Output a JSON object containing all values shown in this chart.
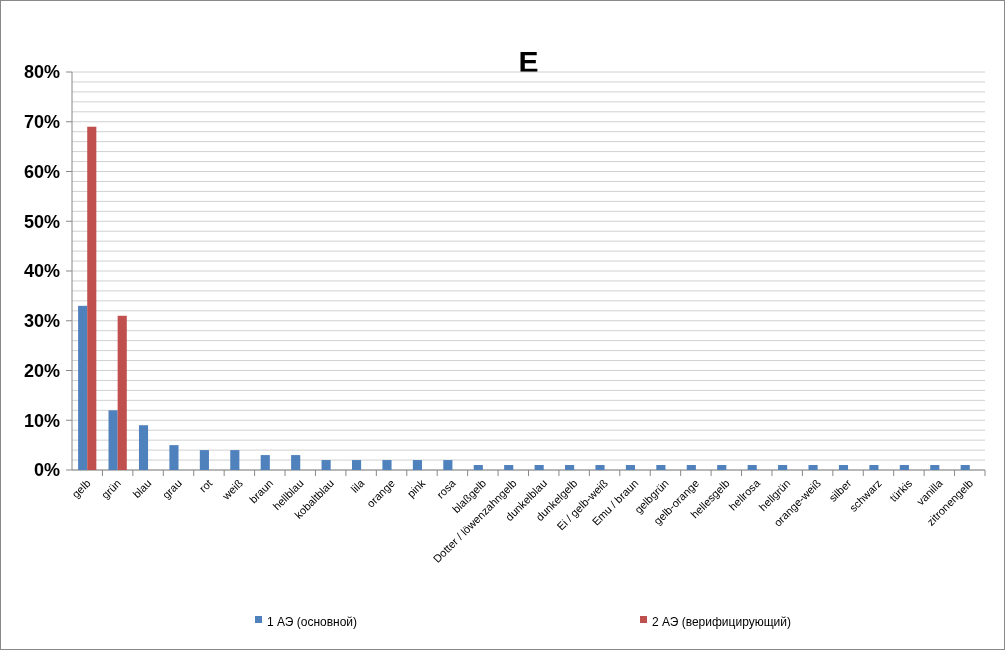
{
  "chart_data": {
    "type": "bar",
    "title": "E",
    "categories": [
      "gelb",
      "grün",
      "blau",
      "grau",
      "rot",
      "weiß",
      "braun",
      "hellblau",
      "kobaltblau",
      "lila",
      "orange",
      "pink",
      "rosa",
      "blaßgelb",
      "Dotter / löwenzahngelb",
      "dunkelblau",
      "dunkelgelb",
      "Ei / gelb-weiß",
      "Emu / braun",
      "gelbgrün",
      "gelb-orange",
      "hellesgelb",
      "hellrosa",
      "hellgrün",
      "orange-weiß",
      "silber",
      "schwarz",
      "türkis",
      "vanilla",
      "zitronengelb"
    ],
    "series": [
      {
        "name": "1 АЭ (основной)",
        "color": "#4f81bd",
        "values": [
          33,
          12,
          9,
          5,
          4,
          4,
          3,
          3,
          2,
          2,
          2,
          2,
          2,
          1,
          1,
          1,
          1,
          1,
          1,
          1,
          1,
          1,
          1,
          1,
          1,
          1,
          1,
          1,
          1,
          1
        ]
      },
      {
        "name": "2 АЭ (верифицирующий)",
        "color": "#c0504d",
        "values": [
          69,
          31,
          null,
          null,
          null,
          null,
          null,
          null,
          null,
          null,
          null,
          null,
          null,
          null,
          null,
          null,
          null,
          null,
          null,
          null,
          null,
          null,
          null,
          null,
          null,
          null,
          null,
          null,
          null,
          null
        ]
      }
    ],
    "ylim": [
      0,
      80
    ],
    "yticks": [
      {
        "value": 0,
        "label": "0%"
      },
      {
        "value": 2,
        "label": null
      },
      {
        "value": 4,
        "label": null
      },
      {
        "value": 6,
        "label": null
      },
      {
        "value": 8,
        "label": null
      },
      {
        "value": 10,
        "label": "10%"
      },
      {
        "value": 12,
        "label": null
      },
      {
        "value": 14,
        "label": null
      },
      {
        "value": 16,
        "label": null
      },
      {
        "value": 18,
        "label": null
      },
      {
        "value": 20,
        "label": "20%"
      },
      {
        "value": 22,
        "label": null
      },
      {
        "value": 24,
        "label": null
      },
      {
        "value": 26,
        "label": null
      },
      {
        "value": 28,
        "label": null
      },
      {
        "value": 30,
        "label": "30%"
      },
      {
        "value": 32,
        "label": null
      },
      {
        "value": 34,
        "label": null
      },
      {
        "value": 36,
        "label": null
      },
      {
        "value": 38,
        "label": null
      },
      {
        "value": 40,
        "label": "40%"
      },
      {
        "value": 42,
        "label": null
      },
      {
        "value": 44,
        "label": null
      },
      {
        "value": 46,
        "label": null
      },
      {
        "value": 48,
        "label": null
      },
      {
        "value": 50,
        "label": "50%"
      },
      {
        "value": 52,
        "label": null
      },
      {
        "value": 54,
        "label": null
      },
      {
        "value": 56,
        "label": null
      },
      {
        "value": 58,
        "label": null
      },
      {
        "value": 60,
        "label": "60%"
      },
      {
        "value": 62,
        "label": null
      },
      {
        "value": 64,
        "label": null
      },
      {
        "value": 66,
        "label": null
      },
      {
        "value": 68,
        "label": null
      },
      {
        "value": 70,
        "label": "70%"
      },
      {
        "value": 72,
        "label": null
      },
      {
        "value": 74,
        "label": null
      },
      {
        "value": 76,
        "label": null
      },
      {
        "value": 78,
        "label": null
      },
      {
        "value": 80,
        "label": "80%"
      }
    ],
    "grid": "y",
    "legend": "bottom"
  }
}
